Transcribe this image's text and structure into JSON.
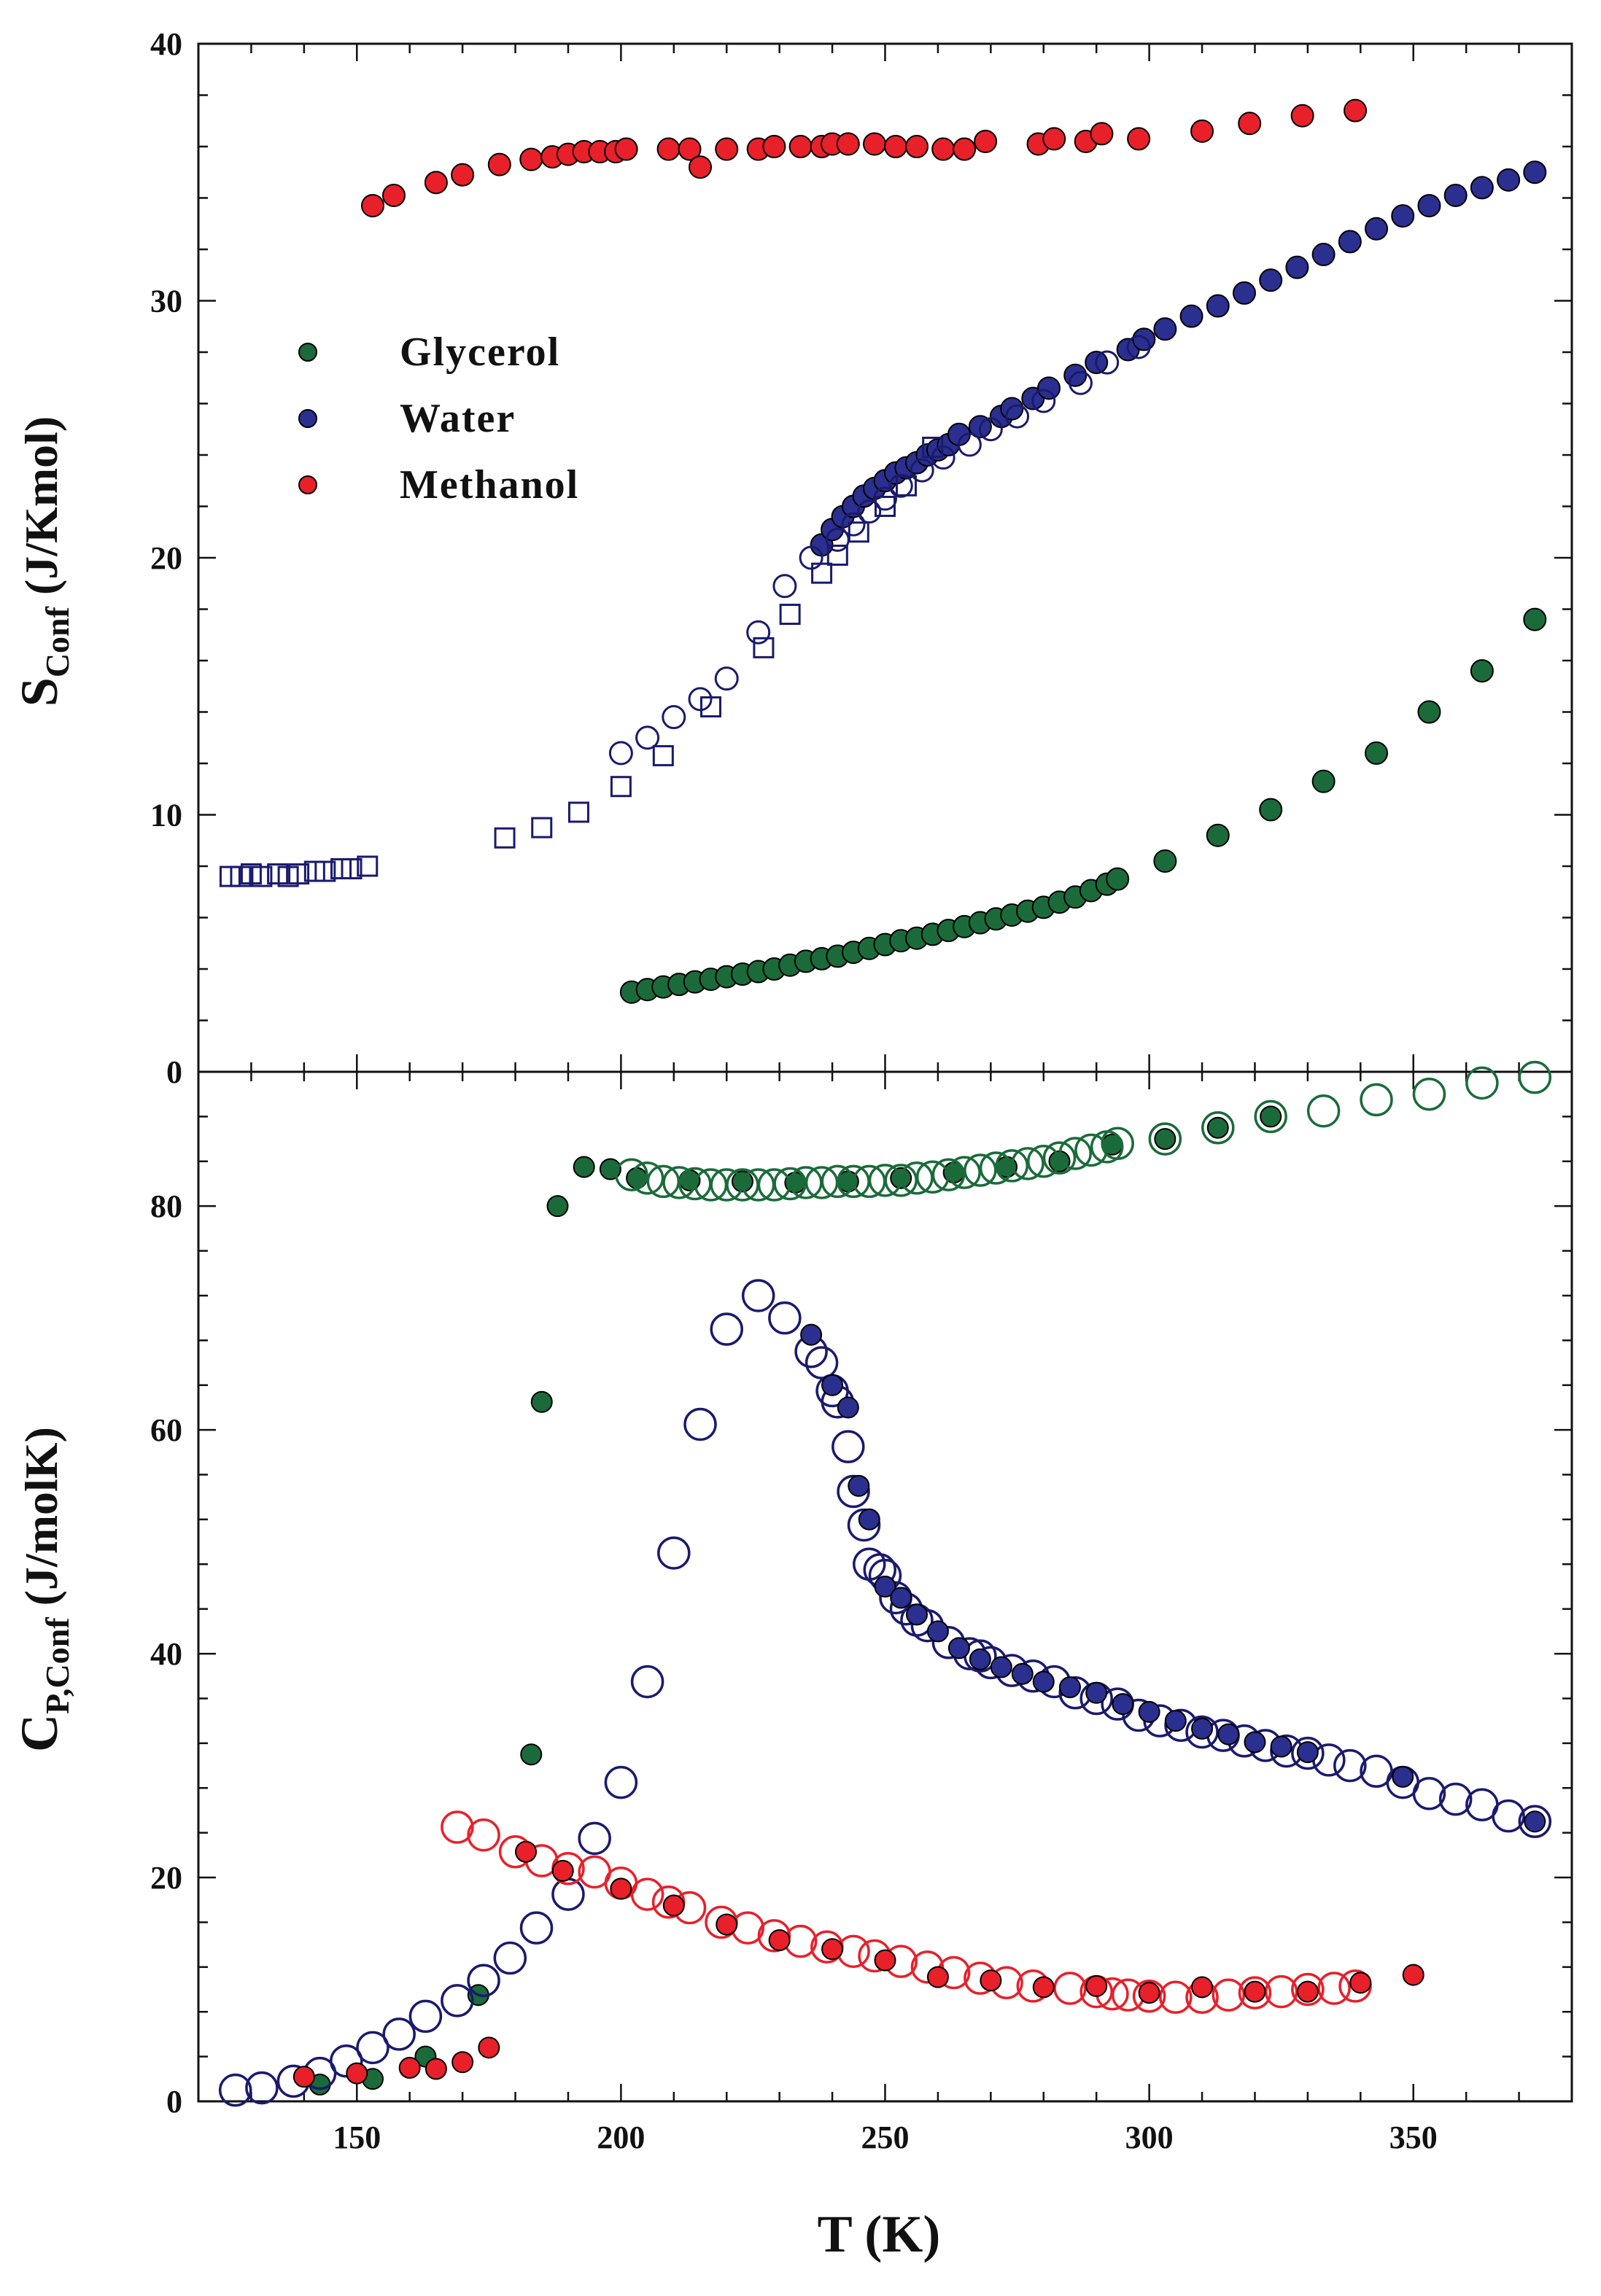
{
  "colors": {
    "glycerol": "#1b6b3a",
    "water": "#2b2f8f",
    "water_open": "#1a1a6e",
    "methanol": "#e8202a"
  },
  "chart_data": [
    {
      "type": "scatter",
      "panel": "top",
      "ylabel_main": "S",
      "ylabel_sub": "Conf",
      "ylabel_unit": " (J/Kmol)",
      "xlim": [
        120,
        380
      ],
      "ylim": [
        0,
        40
      ],
      "yticks": [
        "0",
        "10",
        "20",
        "30",
        "40"
      ],
      "legend": {
        "placement": "upper-left",
        "entries": [
          {
            "label": "Glycerol",
            "series": "glycerol"
          },
          {
            "label": "Water",
            "series": "water"
          },
          {
            "label": "Methanol",
            "series": "methanol"
          }
        ]
      },
      "series": [
        {
          "name": "Methanol",
          "color": "methanol",
          "marker": "filled-circle",
          "x": [
            153,
            157,
            165,
            170,
            177,
            183,
            187,
            190,
            193,
            196,
            199,
            201,
            209,
            213,
            215,
            220,
            226,
            229,
            234,
            238,
            240,
            243,
            248,
            252,
            256,
            261,
            265,
            269,
            279,
            282,
            288,
            291,
            298,
            310,
            319,
            329,
            339
          ],
          "y": [
            33.7,
            34.1,
            34.6,
            34.9,
            35.3,
            35.5,
            35.6,
            35.7,
            35.8,
            35.8,
            35.8,
            35.9,
            35.9,
            35.9,
            35.2,
            35.9,
            35.9,
            36.0,
            36.0,
            36.0,
            36.1,
            36.1,
            36.1,
            36.0,
            36.0,
            35.9,
            35.9,
            36.2,
            36.1,
            36.3,
            36.2,
            36.5,
            36.3,
            36.6,
            36.9,
            37.2,
            37.4
          ]
        },
        {
          "name": "Water (filled)",
          "color": "water",
          "marker": "filled-circle",
          "x": [
            238,
            240,
            242,
            244,
            246,
            248,
            250,
            252,
            254,
            256,
            258,
            260,
            262,
            264,
            268,
            272,
            274,
            278,
            281,
            286,
            290,
            296,
            299,
            303,
            308,
            313,
            318,
            323,
            328,
            333,
            338,
            343,
            348,
            353,
            358,
            363,
            368,
            373
          ],
          "y": [
            20.5,
            21.1,
            21.6,
            22.0,
            22.4,
            22.7,
            23.0,
            23.3,
            23.5,
            23.7,
            24.0,
            24.2,
            24.4,
            24.8,
            25.1,
            25.5,
            25.8,
            26.2,
            26.6,
            27.1,
            27.6,
            28.1,
            28.5,
            28.9,
            29.4,
            29.8,
            30.3,
            30.8,
            31.3,
            31.8,
            32.3,
            32.8,
            33.3,
            33.7,
            34.1,
            34.4,
            34.7,
            35.0
          ]
        },
        {
          "name": "Water (open circles)",
          "color": "water_open",
          "marker": "open-circle",
          "x": [
            200,
            205,
            210,
            215,
            220,
            226,
            231,
            236,
            241,
            244,
            247,
            250,
            253,
            257,
            261,
            266,
            270,
            275,
            280,
            287,
            292,
            298
          ],
          "y": [
            12.4,
            13.0,
            13.8,
            14.5,
            15.3,
            17.1,
            18.9,
            20.0,
            20.7,
            21.3,
            21.8,
            22.3,
            22.8,
            23.4,
            23.9,
            24.4,
            25.0,
            25.5,
            26.1,
            26.8,
            27.6,
            28.2
          ]
        },
        {
          "name": "Water (open squares)",
          "color": "water_open",
          "marker": "open-square",
          "x": [
            126,
            128,
            130,
            132,
            135,
            137,
            139,
            142,
            144,
            147,
            149,
            152,
            178,
            185,
            192,
            200,
            208,
            217,
            227,
            232,
            238,
            241,
            245,
            250,
            254,
            259
          ],
          "y": [
            7.6,
            7.6,
            7.7,
            7.6,
            7.7,
            7.6,
            7.7,
            7.8,
            7.8,
            7.9,
            7.9,
            8.0,
            9.1,
            9.5,
            10.1,
            11.1,
            12.3,
            14.2,
            16.5,
            17.8,
            19.4,
            20.1,
            21.0,
            22.0,
            22.8,
            24.3
          ]
        },
        {
          "name": "Glycerol",
          "color": "glycerol",
          "marker": "filled-circle",
          "x": [
            202,
            205,
            208,
            211,
            214,
            217,
            220,
            223,
            226,
            229,
            232,
            235,
            238,
            241,
            244,
            247,
            250,
            253,
            256,
            259,
            262,
            265,
            268,
            271,
            274,
            277,
            280,
            283,
            286,
            289,
            292,
            294,
            303,
            313,
            323,
            333,
            343,
            353,
            363,
            373
          ],
          "y": [
            3.1,
            3.2,
            3.3,
            3.4,
            3.5,
            3.6,
            3.7,
            3.8,
            3.9,
            4.0,
            4.15,
            4.3,
            4.4,
            4.5,
            4.65,
            4.8,
            4.95,
            5.1,
            5.2,
            5.35,
            5.5,
            5.65,
            5.8,
            5.95,
            6.1,
            6.25,
            6.4,
            6.6,
            6.8,
            7.05,
            7.3,
            7.5,
            8.2,
            9.2,
            10.2,
            11.3,
            12.4,
            14.0,
            15.6,
            17.6
          ]
        }
      ]
    },
    {
      "type": "scatter",
      "panel": "bottom",
      "ylabel_main": "C",
      "ylabel_sub": "P,Conf",
      "ylabel_unit": " (J/molK)",
      "xlabel": "T (K)",
      "xlim": [
        120,
        380
      ],
      "ylim": [
        0,
        92
      ],
      "yticks": [
        "0",
        "20",
        "40",
        "60",
        "80"
      ],
      "xticks": [
        "150",
        "200",
        "250",
        "300",
        "350"
      ],
      "series": [
        {
          "name": "Glycerol (filled)",
          "color": "glycerol",
          "marker": "filled-circle",
          "x": [
            143,
            153,
            163,
            173,
            183,
            185,
            188,
            193,
            198,
            203,
            213,
            223,
            233,
            243,
            253,
            263,
            273,
            283,
            293,
            303,
            313,
            323
          ],
          "y": [
            1.5,
            2.0,
            4.0,
            9.5,
            31,
            62.5,
            80,
            83.5,
            83.3,
            82.5,
            82.3,
            82.2,
            82.1,
            82.2,
            82.5,
            83.0,
            83.5,
            84.0,
            85.5,
            86,
            87,
            88
          ]
        },
        {
          "name": "Glycerol (open)",
          "color": "glycerol",
          "marker": "open-circle",
          "x": [
            202,
            205,
            208,
            211,
            214,
            217,
            220,
            223,
            226,
            229,
            232,
            235,
            238,
            241,
            244,
            247,
            250,
            253,
            256,
            259,
            262,
            265,
            268,
            271,
            274,
            277,
            280,
            283,
            286,
            289,
            292,
            294,
            303,
            313,
            323,
            333,
            343,
            353,
            363,
            373
          ],
          "y": [
            82.8,
            82.5,
            82.2,
            82.1,
            82.0,
            81.9,
            81.9,
            81.9,
            81.9,
            81.9,
            82.0,
            82.1,
            82.1,
            82.2,
            82.2,
            82.2,
            82.3,
            82.3,
            82.5,
            82.6,
            82.8,
            83.0,
            83.2,
            83.4,
            83.6,
            83.8,
            84.0,
            84.3,
            84.7,
            85.0,
            85.3,
            85.6,
            86.0,
            87.0,
            88.0,
            88.5,
            89.5,
            90.0,
            91.0,
            91.5
          ]
        },
        {
          "name": "Water (open)",
          "color": "water_open",
          "marker": "open-circle",
          "x": [
            127,
            132,
            138,
            143,
            148,
            153,
            158,
            163,
            169,
            174,
            179,
            184,
            190,
            195,
            200,
            205,
            210,
            215,
            220,
            226,
            231,
            236,
            238,
            240,
            241,
            243,
            244,
            246,
            247,
            249,
            250,
            252,
            254,
            256,
            258,
            262,
            266,
            268,
            270,
            274,
            278,
            282,
            286,
            290,
            294,
            298,
            302,
            306,
            310,
            314,
            318,
            322,
            326,
            330,
            334,
            338,
            343,
            348,
            353,
            358,
            363,
            368,
            373
          ],
          "y": [
            1.0,
            1.2,
            1.8,
            2.5,
            3.6,
            4.8,
            6.0,
            7.6,
            9.0,
            10.8,
            12.8,
            15.5,
            18.5,
            23.5,
            28.5,
            37.5,
            49,
            60.5,
            69,
            72,
            70,
            67,
            66,
            63.5,
            62.5,
            58.5,
            54.5,
            51.5,
            48,
            47.5,
            47,
            45,
            44,
            43,
            42.5,
            41,
            40,
            39.8,
            39.2,
            38.5,
            38,
            37.5,
            36.5,
            36,
            35.5,
            34.5,
            34,
            33.6,
            33,
            32.7,
            32.2,
            31.8,
            31.3,
            31.1,
            30.5,
            30,
            29.5,
            28.5,
            27.5,
            27,
            26.5,
            25.5,
            25
          ]
        },
        {
          "name": "Water (filled)",
          "color": "water",
          "marker": "filled-circle",
          "x": [
            236,
            240,
            243,
            245,
            247,
            250,
            253,
            256,
            260,
            264,
            268,
            272,
            276,
            280,
            285,
            290,
            295,
            300,
            305,
            310,
            315,
            320,
            325,
            330,
            348,
            373
          ],
          "y": [
            68.5,
            64,
            62,
            55,
            52,
            46,
            45,
            43.5,
            42,
            40.5,
            39.5,
            38.8,
            38.2,
            37.5,
            37,
            36.5,
            35.5,
            34.8,
            34,
            33.3,
            32.8,
            32.1,
            31.7,
            31.2,
            29,
            25
          ]
        },
        {
          "name": "Methanol (open)",
          "color": "methanol",
          "marker": "open-circle",
          "x": [
            169,
            174,
            180,
            185,
            190,
            195,
            200,
            205,
            209,
            213,
            219,
            224,
            229,
            234,
            239,
            244,
            248,
            253,
            258,
            263,
            268,
            273,
            278,
            285,
            290,
            293,
            296,
            300,
            305,
            310,
            315,
            320,
            325,
            330,
            335,
            339
          ],
          "y": [
            24.5,
            23.8,
            22.3,
            21.5,
            20.8,
            20.5,
            19.5,
            18.5,
            17.8,
            17.3,
            16,
            15.5,
            14.8,
            14.3,
            13.8,
            13.4,
            13,
            12.5,
            12,
            11.5,
            11,
            10.6,
            10.3,
            10.1,
            9.8,
            9.6,
            9.5,
            9.4,
            9.3,
            9.3,
            9.5,
            9.7,
            9.8,
            10,
            10.1,
            10.3
          ]
        },
        {
          "name": "Methanol (filled)",
          "color": "methanol",
          "marker": "filled-circle",
          "x": [
            140,
            150,
            160,
            165,
            170,
            175,
            182,
            189,
            200,
            210,
            220,
            230,
            240,
            250,
            260,
            270,
            280,
            290,
            300,
            310,
            320,
            330,
            340,
            350
          ],
          "y": [
            2.2,
            2.5,
            3.0,
            2.9,
            3.5,
            4.8,
            22.3,
            20.6,
            19,
            17.5,
            15.8,
            14.4,
            13.6,
            12.6,
            11.1,
            10.8,
            10.2,
            10.3,
            9.7,
            10.2,
            9.8,
            9.8,
            10.6,
            11.3
          ]
        }
      ]
    }
  ]
}
